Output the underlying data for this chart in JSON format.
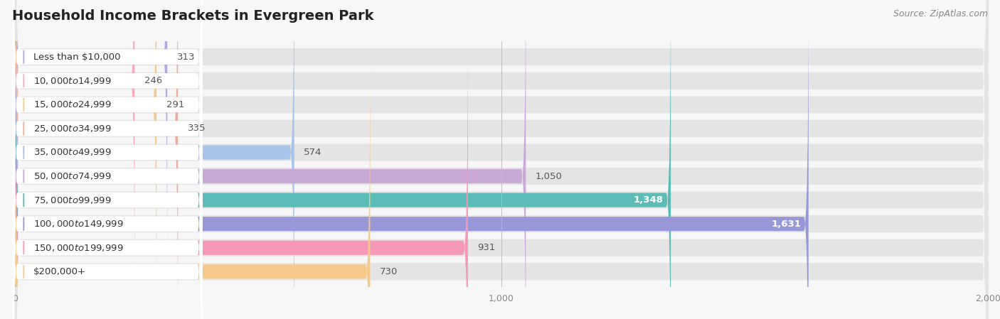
{
  "title": "Household Income Brackets in Evergreen Park",
  "source": "Source: ZipAtlas.com",
  "categories": [
    "Less than $10,000",
    "$10,000 to $14,999",
    "$15,000 to $24,999",
    "$25,000 to $34,999",
    "$35,000 to $49,999",
    "$50,000 to $74,999",
    "$75,000 to $99,999",
    "$100,000 to $149,999",
    "$150,000 to $199,999",
    "$200,000+"
  ],
  "values": [
    313,
    246,
    291,
    335,
    574,
    1050,
    1348,
    1631,
    931,
    730
  ],
  "bar_colors": [
    "#aaaade",
    "#f7aabb",
    "#f5c98a",
    "#f0a898",
    "#a8c4e8",
    "#c8a8d8",
    "#5bbcb8",
    "#9898d8",
    "#f598b8",
    "#f5c98a"
  ],
  "bg_color": "#f7f7f7",
  "bar_bg_color": "#e4e4e4",
  "label_box_color": "#ffffff",
  "xlim": [
    0,
    2000
  ],
  "xticks": [
    0,
    1000,
    2000
  ],
  "title_fontsize": 14,
  "label_fontsize": 9.5,
  "value_fontsize": 9.5,
  "source_fontsize": 9
}
